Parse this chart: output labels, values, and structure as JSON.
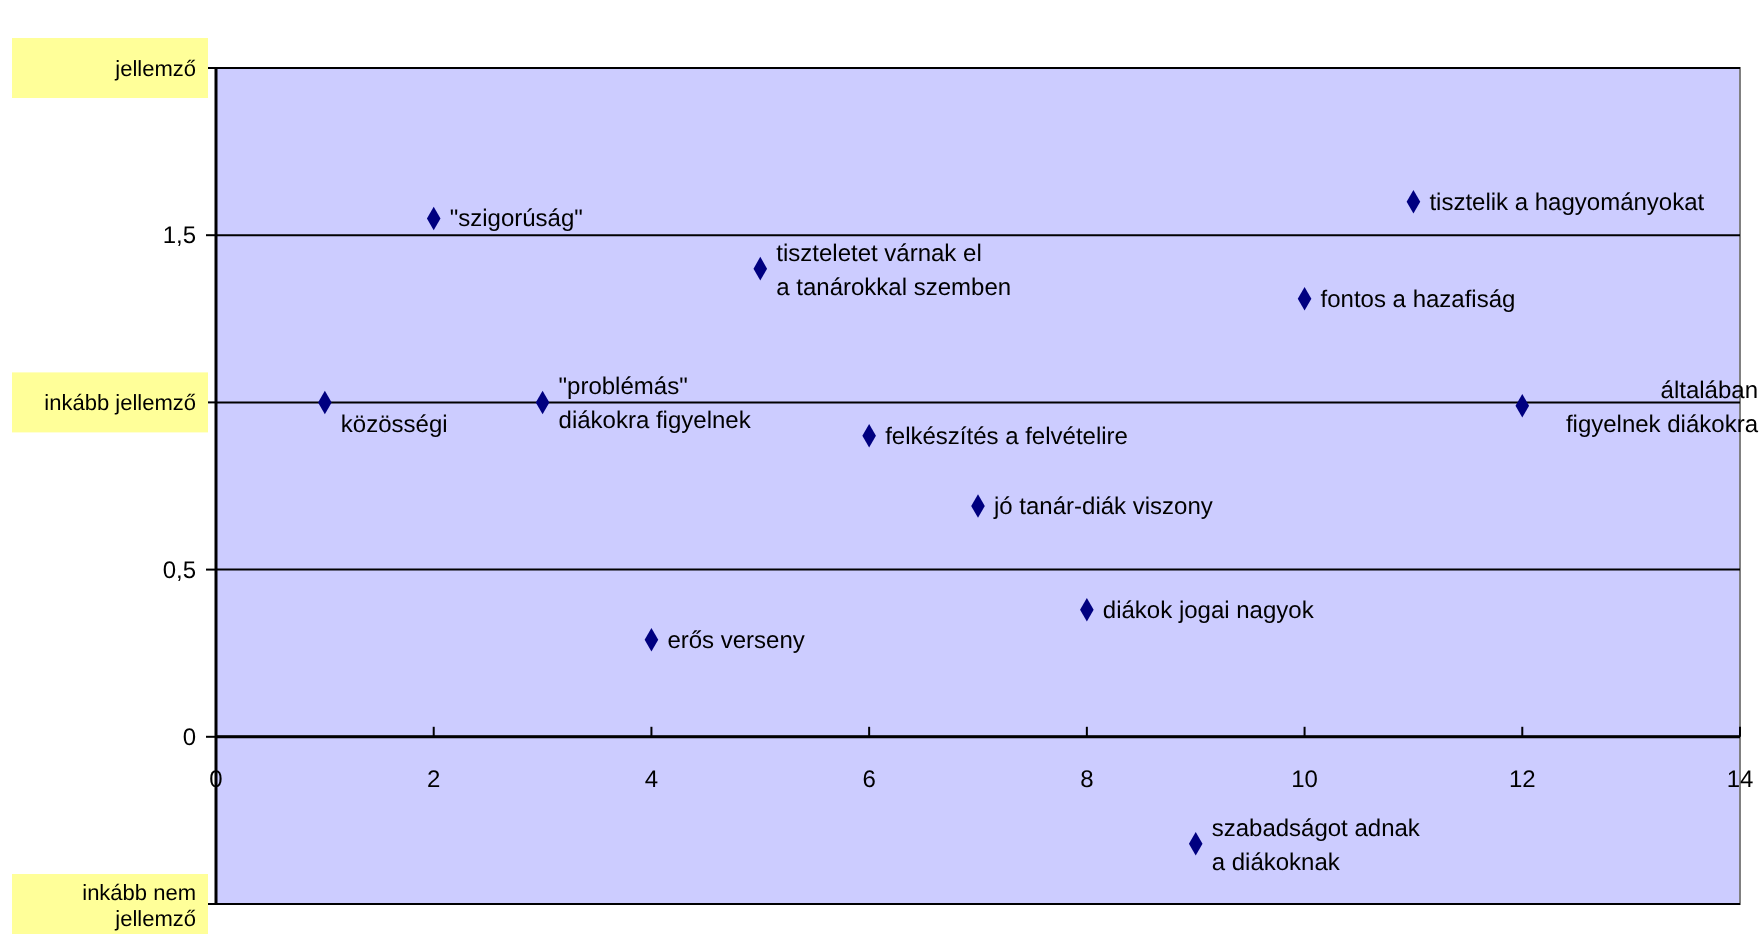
{
  "chart_data": {
    "type": "scatter",
    "x": [
      1,
      2,
      3,
      4,
      5,
      6,
      7,
      8,
      9,
      10,
      11,
      12
    ],
    "series": [
      {
        "color": "#000080",
        "values": [
          1.0,
          1.55,
          1.0,
          0.29,
          1.4,
          0.9,
          0.69,
          0.38,
          -0.32,
          1.31,
          1.6,
          0.99
        ]
      }
    ],
    "marker": "diamond",
    "xlim": [
      0,
      14
    ],
    "xticks": [
      0,
      2,
      4,
      6,
      8,
      10,
      12,
      14
    ],
    "ylim": [
      -0.5,
      2
    ],
    "yticks": [
      {
        "value": -0.5,
        "label": "inkább nem jellemző"
      },
      0,
      {
        "value": 0.5,
        "label": "0,5"
      },
      {
        "value": 1,
        "label": "inkább jellemző"
      },
      {
        "value": 1.5,
        "label": "1,5"
      },
      {
        "value": 2,
        "label": "jellemző"
      }
    ],
    "grid": "y",
    "annotations": [
      {
        "text": "közösségi",
        "x": 1,
        "y": 1.0
      },
      {
        "text": "\"szigorúság\"",
        "x": 2,
        "y": 1.55
      },
      {
        "text": "\"problémás\" diákokra figyelnek",
        "x": 3,
        "y": 1.0
      },
      {
        "text": "erős verseny",
        "x": 4,
        "y": 0.29
      },
      {
        "text": "tiszteletet várnak el a tanárokkal szemben",
        "x": 5,
        "y": 1.4
      },
      {
        "text": "felkészítés a felvételire",
        "x": 6,
        "y": 0.9
      },
      {
        "text": "jó tanár-diák viszony",
        "x": 7,
        "y": 0.69
      },
      {
        "text": "diákok jogai nagyok",
        "x": 8,
        "y": 0.38
      },
      {
        "text": "szabadságot adnak a diákoknak",
        "x": 9,
        "y": -0.32
      },
      {
        "text": "fontos a hazafiság",
        "x": 10,
        "y": 1.31
      },
      {
        "text": "tisztelik a hagyományokat",
        "x": 11,
        "y": 1.6
      },
      {
        "text": "általában figyelnek diákokra",
        "x": 12,
        "y": 0.99
      }
    ]
  }
}
